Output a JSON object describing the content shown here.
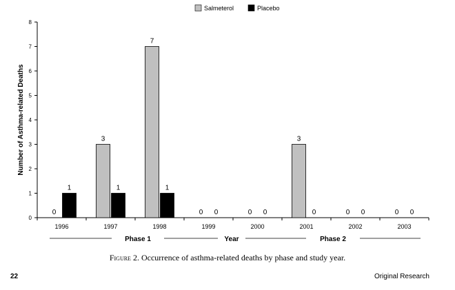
{
  "chart_data": {
    "type": "bar",
    "categories": [
      "1996",
      "1997",
      "1998",
      "1999",
      "2000",
      "2001",
      "2002",
      "2003"
    ],
    "series": [
      {
        "name": "Salmeterol",
        "values": [
          0,
          3,
          7,
          0,
          0,
          3,
          0,
          0
        ],
        "color": "#c0c0c0"
      },
      {
        "name": "Placebo",
        "values": [
          1,
          1,
          1,
          0,
          0,
          0,
          0,
          0
        ],
        "color": "#000000"
      }
    ],
    "ylabel": "Number of Asthma-related Deaths",
    "xlabel": "Year",
    "ylim": [
      0,
      8
    ],
    "yticks": [
      0,
      1,
      2,
      3,
      4,
      5,
      6,
      7,
      8
    ],
    "legend_position": "top-center",
    "phases": [
      {
        "label": "Phase 1",
        "categories": [
          "1996",
          "1997",
          "1998",
          "1999"
        ]
      },
      {
        "label": "Phase 2",
        "categories": [
          "2000",
          "2001",
          "2002",
          "2003"
        ]
      }
    ]
  },
  "figure": {
    "caption_label": "Figure 2.",
    "caption_text": "Occurrence of asthma-related deaths by phase and study year."
  },
  "footer": {
    "page_number": "22",
    "section": "Original Research"
  }
}
